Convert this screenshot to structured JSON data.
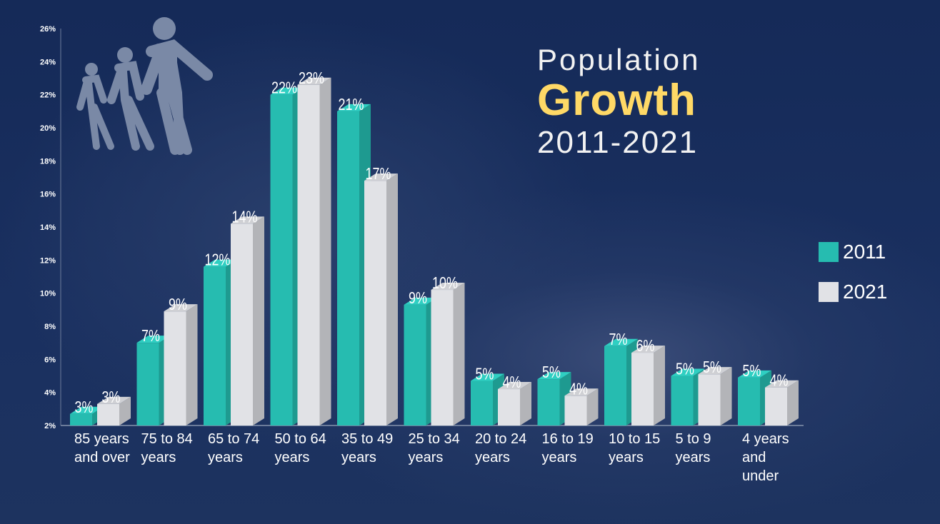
{
  "chart_data": {
    "type": "bar",
    "title": "Population Growth 2011-2021",
    "title_parts": [
      "Population",
      "Growth",
      "2011-2021"
    ],
    "categories": [
      "85 years and over",
      "75 to 84 years",
      "65 to 74 years",
      "50 to 64 years",
      "35 to 49 years",
      "25 to 34 years",
      "20 to 24 years",
      "16 to 19 years",
      "10 to 15 years",
      "5 to 9 years",
      "4 years and under"
    ],
    "series": [
      {
        "name": "2011",
        "color": "#26bcb0",
        "values": [
          2.7,
          7.0,
          11.6,
          22.0,
          21.0,
          9.3,
          4.7,
          4.8,
          6.8,
          5.0,
          4.9
        ],
        "labels": [
          "3%",
          "7%",
          "12%",
          "22%",
          "21%",
          "9%",
          "5%",
          "5%",
          "7%",
          "5%",
          "5%"
        ]
      },
      {
        "name": "2021",
        "color": "#e1e2e6",
        "values": [
          3.3,
          8.9,
          14.2,
          22.6,
          16.8,
          10.2,
          4.2,
          3.8,
          6.4,
          5.1,
          4.3
        ],
        "labels": [
          "3%",
          "9%",
          "14%",
          "23%",
          "17%",
          "10%",
          "4%",
          "4%",
          "6%",
          "5%",
          "4%"
        ]
      }
    ],
    "yticks": [
      "2%",
      "4%",
      "6%",
      "8%",
      "10%",
      "12%",
      "14%",
      "16%",
      "18%",
      "20%",
      "22%",
      "24%",
      "26%"
    ],
    "ylim": [
      2,
      26
    ],
    "grid": false,
    "legend_position": "right",
    "style": "3d-bar"
  },
  "colors": {
    "accent": "#ffd966",
    "background": "#182d5a"
  },
  "decor": {
    "icon": "family-icon"
  }
}
